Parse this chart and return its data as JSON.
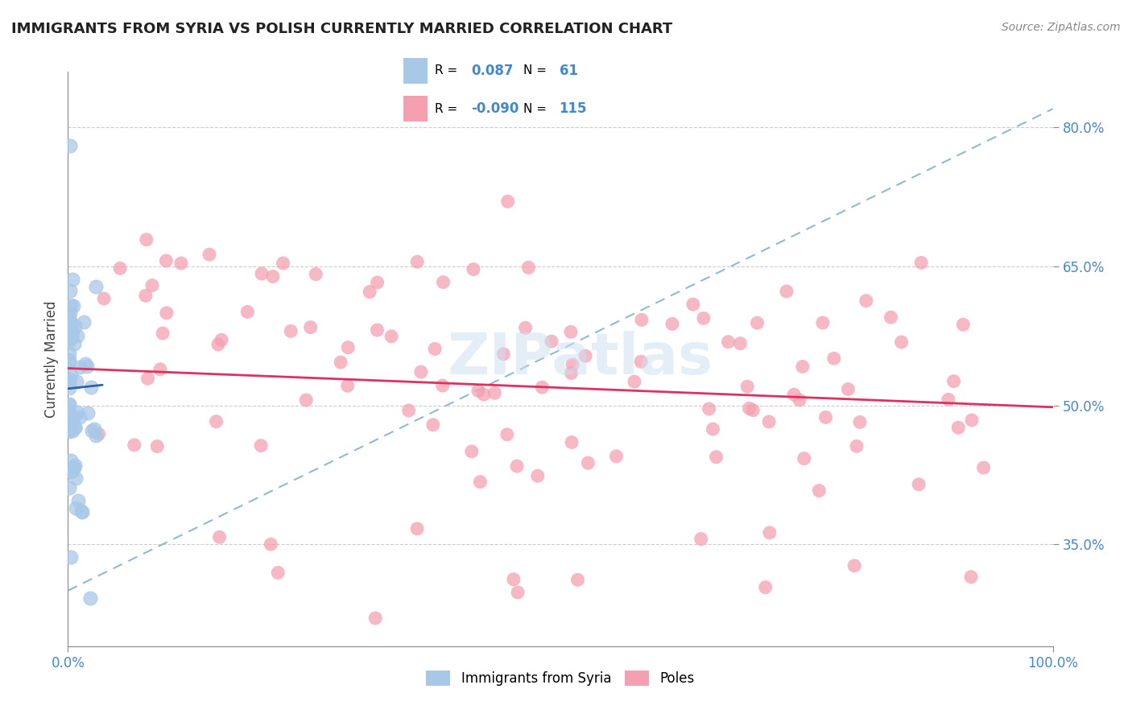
{
  "title": "IMMIGRANTS FROM SYRIA VS POLISH CURRENTLY MARRIED CORRELATION CHART",
  "source": "Source: ZipAtlas.com",
  "ylabel": "Currently Married",
  "xlim": [
    0.0,
    1.0
  ],
  "ylim": [
    0.24,
    0.86
  ],
  "yticks": [
    0.35,
    0.5,
    0.65,
    0.8
  ],
  "ytick_labels": [
    "35.0%",
    "50.0%",
    "65.0%",
    "80.0%"
  ],
  "xticks": [
    0.0,
    1.0
  ],
  "xtick_labels": [
    "0.0%",
    "100.0%"
  ],
  "r_syria": 0.087,
  "n_syria": 61,
  "r_polish": -0.09,
  "n_polish": 115,
  "blue_color": "#a8c8e8",
  "pink_color": "#f4a0b0",
  "blue_line_color": "#3060b0",
  "pink_line_color": "#e03060",
  "dashed_line_color": "#90b8d8",
  "background_color": "#ffffff",
  "watermark": "ZIPatlas",
  "title_color": "#222222",
  "label_color": "#4488cc",
  "axis_color": "#888888",
  "legend_r_color": "#000000",
  "legend_n_color": "#4488cc"
}
